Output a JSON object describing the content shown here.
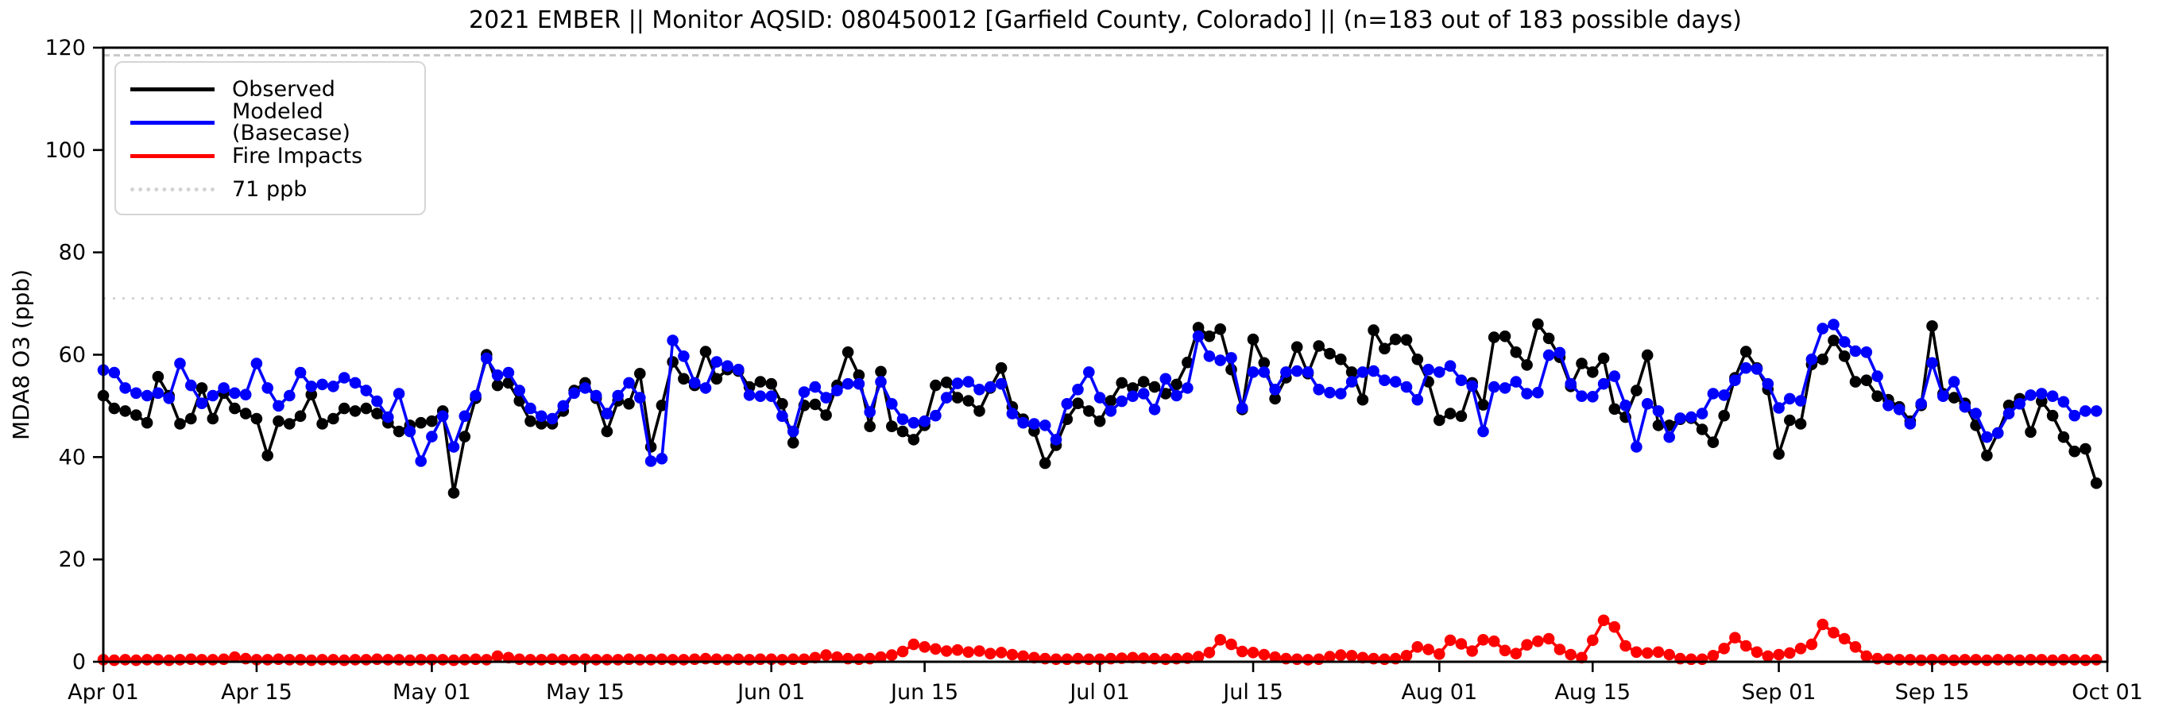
{
  "chart_data": {
    "type": "line",
    "title": "2021 EMBER || Monitor AQSID: 080450012 [Garfield County, Colorado] || (n=183 out of 183 possible days)",
    "xlabel": "",
    "ylabel": "MDA8 O3 (ppb)",
    "ylim": [
      0,
      120
    ],
    "yticks": [
      0,
      20,
      40,
      60,
      80,
      100,
      120
    ],
    "x_start_date": "2021-04-01",
    "x_end_date": "2021-09-30",
    "n_days": 183,
    "grid": false,
    "legend_position": "upper left",
    "xticks": [
      {
        "label": "Apr 01",
        "day": 0
      },
      {
        "label": "Apr 15",
        "day": 14
      },
      {
        "label": "May 01",
        "day": 30
      },
      {
        "label": "May 15",
        "day": 44
      },
      {
        "label": "Jun 01",
        "day": 61
      },
      {
        "label": "Jun 15",
        "day": 75
      },
      {
        "label": "Jul 01",
        "day": 91
      },
      {
        "label": "Jul 15",
        "day": 105
      },
      {
        "label": "Aug 01",
        "day": 122
      },
      {
        "label": "Aug 15",
        "day": 136
      },
      {
        "label": "Sep 01",
        "day": 153
      },
      {
        "label": "Sep 15",
        "day": 167
      },
      {
        "label": "Oct 01",
        "day": 183
      }
    ],
    "reference_lines": [
      {
        "label": "71 ppb",
        "value": 71,
        "color": "#d3d3d3",
        "style": "dotted"
      },
      {
        "label": "",
        "value": 118.5,
        "color": "#c8c8c8",
        "style": "dashed"
      }
    ],
    "series": [
      {
        "name": "Observed",
        "color": "#000000",
        "marker": "circle",
        "values": [
          52,
          49.5,
          49,
          48.2,
          46.7,
          55.7,
          52,
          46.5,
          47.5,
          53.5,
          47.5,
          52.5,
          49.5,
          48.5,
          47.5,
          40.3,
          47,
          46.5,
          48,
          52.2,
          46.5,
          47.5,
          49.5,
          49,
          49.5,
          48.5,
          46.7,
          45,
          46.2,
          46.7,
          47,
          49,
          33,
          44,
          51.5,
          60,
          54,
          54.5,
          51,
          47,
          46.5,
          46.5,
          49,
          53,
          54.5,
          51.5,
          45,
          51,
          50.4,
          56.3,
          42,
          50.1,
          58.6,
          55.3,
          54,
          60.6,
          55.3,
          57.1,
          56.8,
          53.7,
          54.7,
          54.3,
          50.4,
          42.8,
          50.1,
          50.3,
          48.2,
          54,
          60.5,
          56,
          46,
          56.7,
          46,
          45,
          43.4,
          46.2,
          54,
          54.6,
          51.6,
          51,
          49,
          53.5,
          57.4,
          49.8,
          47.4,
          45.1,
          38.8,
          42.3,
          47.4,
          50.5,
          49,
          47,
          51,
          54.5,
          53.5,
          54.7,
          53.7,
          52.4,
          54.2,
          58.5,
          65.3,
          63.6,
          65,
          57.1,
          49.3,
          63,
          58.4,
          51.4,
          55.5,
          61.5,
          56.3,
          61.7,
          60.2,
          59.1,
          56.6,
          51.2,
          64.8,
          61.2,
          63,
          62.9,
          59.1,
          54.7,
          47.2,
          48.5,
          48,
          54.5,
          50.2,
          63.4,
          63.6,
          60.5,
          58,
          66,
          63.2,
          59.5,
          53.8,
          58.3,
          56.6,
          59.3,
          49.4,
          47.8,
          53,
          59.9,
          46.2,
          46.2,
          47.4,
          47.6,
          45.4,
          42.9,
          48.1,
          55.5,
          60.6,
          57.4,
          53.2,
          40.6,
          47.2,
          46.5,
          58.1,
          59.1,
          62.8,
          59.7,
          54.7,
          55,
          51.9,
          51.2,
          49.8,
          47,
          50.1,
          65.6,
          52.4,
          51.6,
          50.5,
          46.2,
          40.3,
          44.7,
          50.1,
          51.4,
          44.9,
          50.9,
          48.1,
          43.9,
          41.1,
          41.6,
          34.9
        ]
      },
      {
        "name": "Modeled (Basecase)",
        "color": "#0000ff",
        "marker": "circle",
        "values": [
          57,
          56.5,
          53.5,
          52.5,
          52,
          52.5,
          51.5,
          58.3,
          54,
          50.5,
          52,
          53.5,
          52.5,
          52.2,
          58.3,
          53.5,
          50,
          52,
          56.5,
          53.8,
          54.2,
          53.8,
          55.5,
          54.5,
          53,
          50.9,
          47.8,
          52.4,
          45,
          39.2,
          44,
          48,
          42,
          48,
          52,
          59.3,
          56,
          56.5,
          53,
          49.5,
          48,
          47.5,
          50,
          52.5,
          53.5,
          52,
          48.5,
          52,
          54.5,
          51.6,
          39.2,
          39.7,
          62.8,
          59.7,
          54.5,
          53.5,
          58.6,
          57.8,
          57.1,
          52.1,
          51.9,
          51.9,
          48,
          45,
          52.7,
          53.7,
          51.6,
          53,
          54.3,
          54.3,
          48.8,
          54.7,
          50.4,
          47.4,
          46.7,
          47,
          48.1,
          51.6,
          54.4,
          54.7,
          53.2,
          53.7,
          54.3,
          48.5,
          46.7,
          46.5,
          46.2,
          43.4,
          50.4,
          53.2,
          56.6,
          51.6,
          49,
          50.9,
          51.9,
          52.4,
          49.3,
          55.3,
          52,
          53.5,
          63.6,
          59.7,
          58.9,
          59.4,
          49.6,
          56.6,
          56.6,
          53.2,
          56.6,
          56.8,
          56.6,
          53.2,
          52.6,
          52.4,
          54.7,
          56.6,
          56.8,
          55,
          54.7,
          53.7,
          51.2,
          57.1,
          56.6,
          57.8,
          55,
          53.9,
          45,
          53.7,
          53.5,
          54.7,
          52.4,
          52.6,
          59.9,
          60.4,
          54.3,
          51.9,
          51.8,
          54.3,
          55.8,
          50.1,
          42,
          50.4,
          49,
          43.9,
          47.6,
          47.8,
          48.5,
          52.4,
          52.1,
          55,
          57.4,
          57.2,
          54.3,
          49.6,
          51.4,
          51,
          59.1,
          65.1,
          65.9,
          62.5,
          60.7,
          60.5,
          55.8,
          50.1,
          49.3,
          46.5,
          50.4,
          58.4,
          51.9,
          54.7,
          49.8,
          48.5,
          43.9,
          44.7,
          48.5,
          50.4,
          52.1,
          52.4,
          51.9,
          50.8,
          48.1,
          49,
          49
        ]
      },
      {
        "name": "Fire Impacts",
        "color": "#ff0000",
        "marker": "circle",
        "values": [
          0.4,
          0.3,
          0.4,
          0.3,
          0.4,
          0.4,
          0.3,
          0.4,
          0.5,
          0.4,
          0.4,
          0.5,
          0.9,
          0.6,
          0.4,
          0.4,
          0.5,
          0.4,
          0.4,
          0.3,
          0.4,
          0.4,
          0.3,
          0.4,
          0.4,
          0.5,
          0.4,
          0.4,
          0.3,
          0.4,
          0.4,
          0.4,
          0.3,
          0.4,
          0.5,
          0.4,
          1.1,
          0.8,
          0.5,
          0.4,
          0.4,
          0.5,
          0.4,
          0.4,
          0.5,
          0.4,
          0.4,
          0.4,
          0.5,
          0.4,
          0.4,
          0.5,
          0.4,
          0.4,
          0.5,
          0.6,
          0.5,
          0.4,
          0.5,
          0.4,
          0.5,
          0.5,
          0.4,
          0.5,
          0.5,
          0.8,
          1.3,
          0.9,
          0.6,
          0.5,
          0.6,
          0.9,
          1.3,
          2.0,
          3.4,
          2.9,
          2.5,
          2.1,
          2.3,
          1.9,
          2.1,
          1.6,
          1.8,
          1.4,
          1.1,
          0.8,
          0.6,
          0.5,
          0.5,
          0.6,
          0.5,
          0.5,
          0.6,
          0.7,
          0.8,
          0.7,
          0.6,
          0.5,
          0.6,
          0.7,
          1.0,
          1.8,
          4.3,
          3.4,
          2.0,
          1.8,
          1.4,
          0.9,
          0.6,
          0.5,
          0.4,
          0.5,
          1.0,
          1.3,
          1.2,
          0.8,
          0.6,
          0.5,
          0.6,
          1.2,
          2.9,
          2.4,
          1.5,
          4.2,
          3.5,
          2.1,
          4.3,
          4.0,
          2.2,
          1.6,
          3.3,
          4.0,
          4.5,
          2.4,
          1.4,
          0.8,
          4.2,
          8.1,
          6.8,
          3.1,
          1.9,
          1.7,
          1.9,
          1.4,
          0.6,
          0.5,
          0.5,
          1.2,
          2.6,
          4.7,
          3.1,
          1.9,
          1.1,
          1.4,
          1.7,
          2.6,
          3.4,
          7.3,
          5.7,
          4.5,
          2.9,
          1.1,
          0.6,
          0.5,
          0.4,
          0.4,
          0.3,
          0.4,
          0.4,
          0.3,
          0.4,
          0.4,
          0.3,
          0.4,
          0.4,
          0.3,
          0.4,
          0.4,
          0.3,
          0.4,
          0.4,
          0.3,
          0.4
        ]
      }
    ]
  },
  "legend": {
    "items": [
      {
        "label": "Observed",
        "color": "#000000",
        "dash": "solid"
      },
      {
        "label": "Modeled (Basecase)",
        "color": "#0000ff",
        "dash": "solid"
      },
      {
        "label": "Fire Impacts",
        "color": "#ff0000",
        "dash": "solid"
      },
      {
        "label": "71 ppb",
        "color": "#d3d3d3",
        "dash": "dotted"
      }
    ]
  }
}
